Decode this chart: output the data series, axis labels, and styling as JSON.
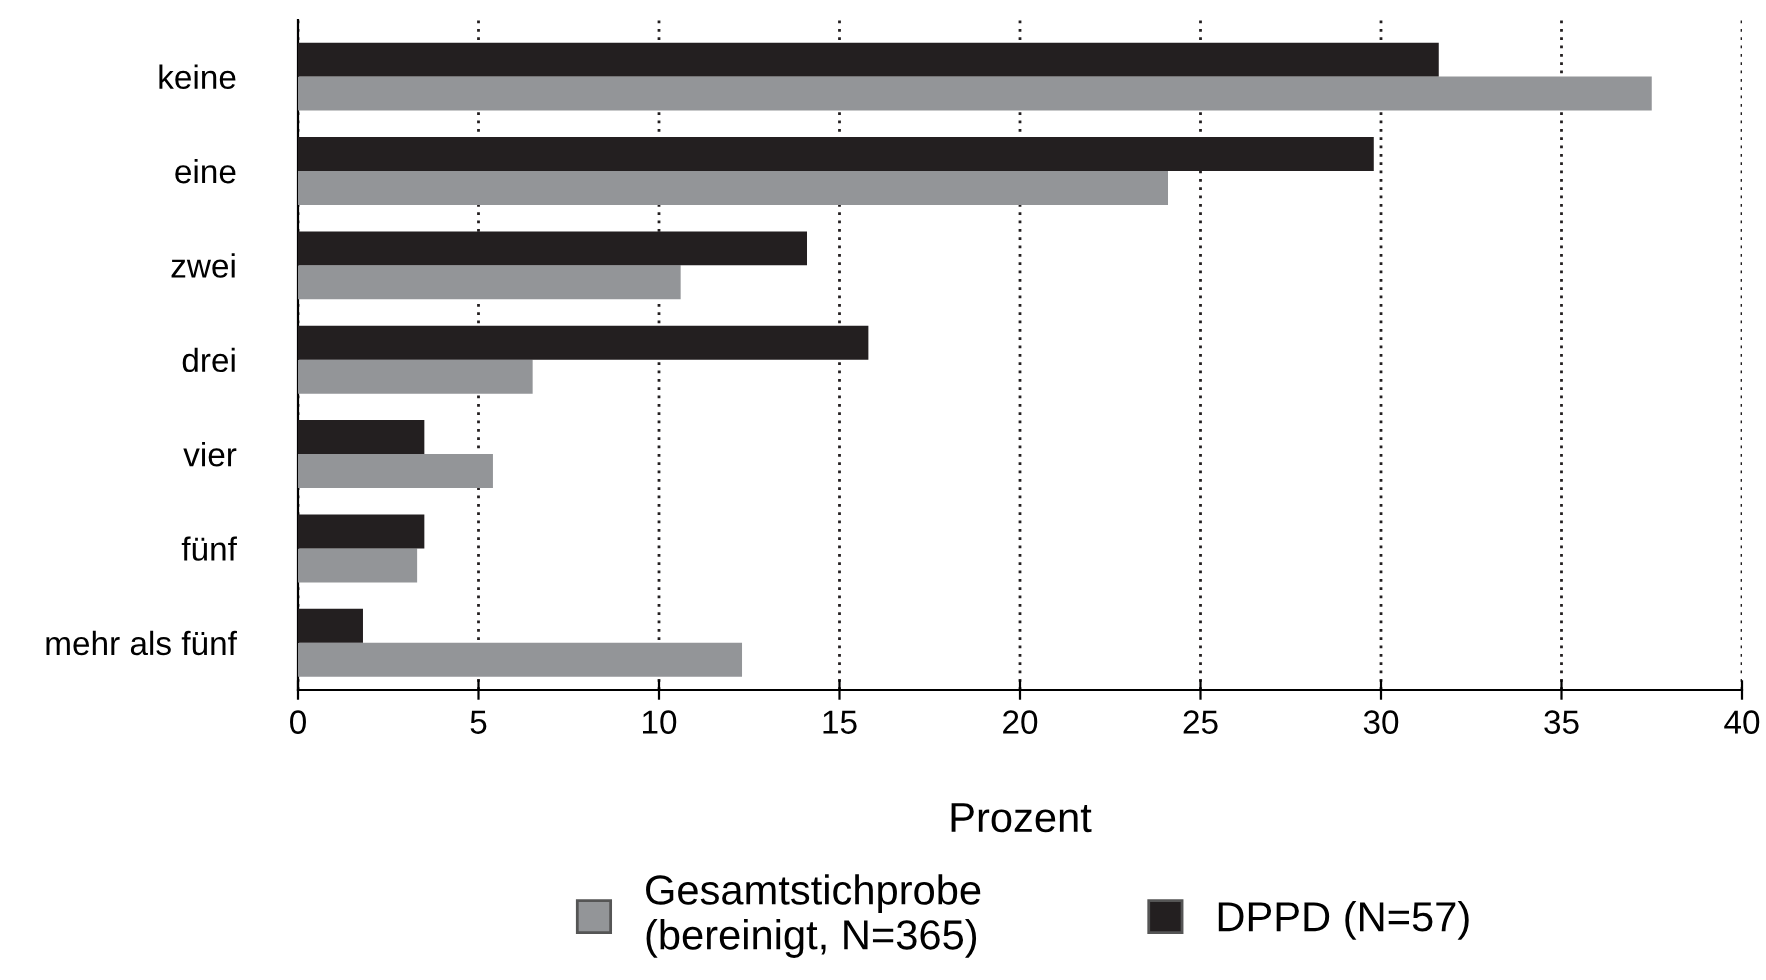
{
  "chart_data": {
    "type": "bar",
    "orientation": "horizontal",
    "xlabel": "Prozent",
    "categories": [
      "keine",
      "eine",
      "zwei",
      "drei",
      "vier",
      "fünf",
      "mehr als fünf"
    ],
    "series": [
      {
        "name": "Gesamtstichprobe\n(bereinigt, N=365)",
        "color": "#939598",
        "values": [
          37.5,
          24.1,
          10.6,
          6.5,
          5.4,
          3.3,
          12.3
        ]
      },
      {
        "name": "DPPD (N=57)",
        "color": "#231f20",
        "values": [
          31.6,
          29.8,
          14.1,
          15.8,
          3.5,
          3.5,
          1.8
        ]
      }
    ],
    "xlim": [
      0,
      40
    ],
    "xticks": [
      0,
      5,
      10,
      15,
      20,
      25,
      30,
      35,
      40
    ],
    "grid": "x",
    "legend": "bottom"
  }
}
